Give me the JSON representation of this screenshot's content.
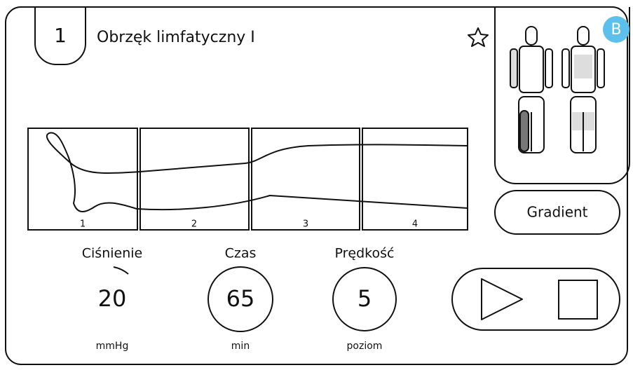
{
  "header": {
    "number": "1",
    "title": "Obrzęk limfatyczny I",
    "badge": "B"
  },
  "chambers": [
    "1",
    "2",
    "3",
    "4"
  ],
  "mode_button": "Gradient",
  "gauges": [
    {
      "label": "Ciśnienie",
      "value": "20",
      "unit": "mmHg"
    },
    {
      "label": "Czas",
      "value": "65",
      "unit": "min"
    },
    {
      "label": "Prędkość",
      "value": "5",
      "unit": "poziom"
    }
  ]
}
